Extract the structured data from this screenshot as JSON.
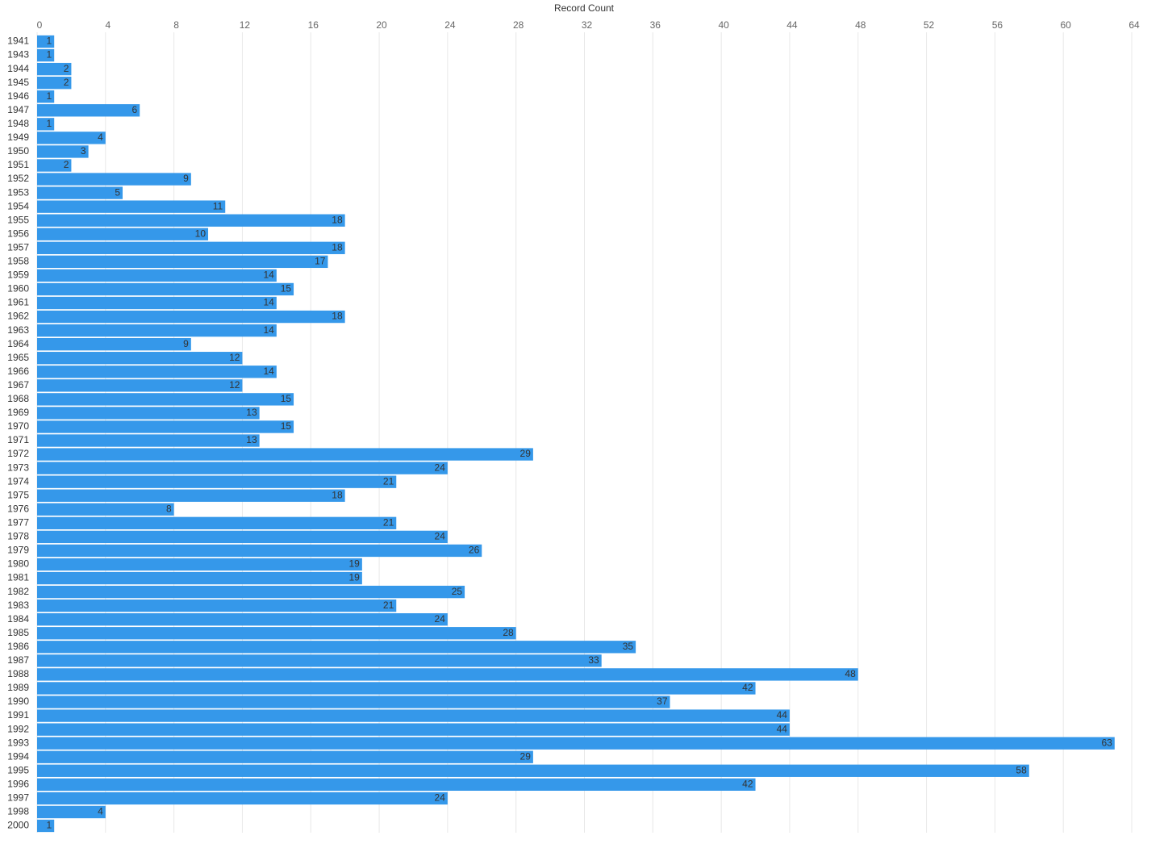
{
  "chart_data": {
    "type": "bar",
    "orientation": "horizontal",
    "title": "Record Count",
    "categories": [
      "1941",
      "1943",
      "1944",
      "1945",
      "1946",
      "1947",
      "1948",
      "1949",
      "1950",
      "1951",
      "1952",
      "1953",
      "1954",
      "1955",
      "1956",
      "1957",
      "1958",
      "1959",
      "1960",
      "1961",
      "1962",
      "1963",
      "1964",
      "1965",
      "1966",
      "1967",
      "1968",
      "1969",
      "1970",
      "1971",
      "1972",
      "1973",
      "1974",
      "1975",
      "1976",
      "1977",
      "1978",
      "1979",
      "1980",
      "1981",
      "1982",
      "1983",
      "1984",
      "1985",
      "1986",
      "1987",
      "1988",
      "1989",
      "1990",
      "1991",
      "1992",
      "1993",
      "1994",
      "1995",
      "1996",
      "1997",
      "1998",
      "2000"
    ],
    "values": [
      1,
      1,
      2,
      2,
      1,
      6,
      1,
      4,
      3,
      2,
      9,
      5,
      11,
      18,
      10,
      18,
      17,
      14,
      15,
      14,
      18,
      14,
      9,
      12,
      14,
      12,
      15,
      13,
      15,
      13,
      29,
      24,
      21,
      18,
      8,
      21,
      24,
      26,
      19,
      19,
      25,
      21,
      24,
      28,
      35,
      33,
      48,
      42,
      37,
      44,
      44,
      63,
      29,
      58,
      42,
      24,
      4,
      1
    ],
    "color": "#3598ea",
    "xlim": [
      0,
      64
    ],
    "xticks": [
      0,
      4,
      8,
      12,
      16,
      20,
      24,
      28,
      32,
      36,
      40,
      44,
      48,
      52,
      56,
      60,
      64
    ],
    "grid": true
  }
}
